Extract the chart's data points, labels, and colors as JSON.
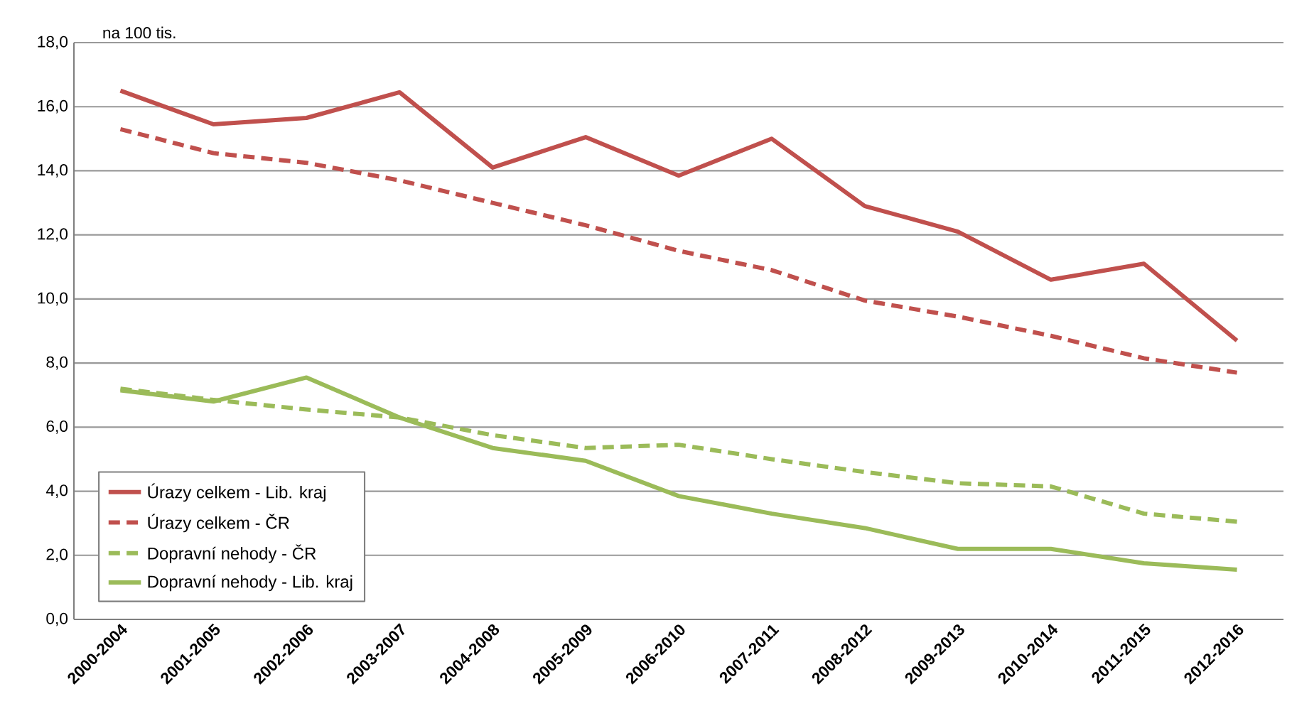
{
  "chart_data": {
    "type": "line",
    "ylabel": "na 100 tis.",
    "categories": [
      "2000-2004",
      "2001-2005",
      "2002-2006",
      "2003-2007",
      "2004-2008",
      "2005-2009",
      "2006-2010",
      "2007-2011",
      "2008-2012",
      "2009-2013",
      "2010-2014",
      "2011-2015",
      "2012-2016"
    ],
    "series": [
      {
        "name": "Úrazy celkem - Lib. kraj",
        "color": "#c0504d",
        "line_style": "solid",
        "values": [
          16.5,
          15.45,
          15.65,
          16.45,
          14.1,
          15.05,
          13.85,
          15.0,
          12.9,
          12.1,
          10.6,
          11.1,
          8.7
        ]
      },
      {
        "name": "Úrazy celkem - ČR",
        "color": "#c0504d",
        "line_style": "dashed",
        "values": [
          15.3,
          14.55,
          14.25,
          13.7,
          13.0,
          12.3,
          11.5,
          10.9,
          9.95,
          9.45,
          8.85,
          8.15,
          7.7
        ]
      },
      {
        "name": "Dopravní nehody - ČR",
        "color": "#9bbb59",
        "line_style": "dashed",
        "values": [
          7.2,
          6.85,
          6.55,
          6.3,
          5.75,
          5.35,
          5.45,
          5.0,
          4.6,
          4.25,
          4.15,
          3.3,
          3.05
        ]
      },
      {
        "name": "Dopravní nehody - Lib. kraj",
        "color": "#9bbb59",
        "line_style": "solid",
        "values": [
          7.15,
          6.8,
          7.55,
          6.3,
          5.35,
          4.95,
          3.85,
          3.3,
          2.85,
          2.2,
          2.2,
          1.75,
          1.55
        ]
      }
    ],
    "ylim": [
      0,
      18
    ],
    "yticks": [
      {
        "value": 0,
        "label": "0,0"
      },
      {
        "value": 2,
        "label": "2,0"
      },
      {
        "value": 4,
        "label": "4,0"
      },
      {
        "value": 6,
        "label": "6,0"
      },
      {
        "value": 8,
        "label": "8,0"
      },
      {
        "value": 10,
        "label": "10,0"
      },
      {
        "value": 12,
        "label": "12,0"
      },
      {
        "value": 14,
        "label": "14,0"
      },
      {
        "value": 16,
        "label": "16,0"
      },
      {
        "value": 18,
        "label": "18,0"
      }
    ],
    "grid": "y",
    "legend": "bottom left",
    "marker": "none"
  }
}
